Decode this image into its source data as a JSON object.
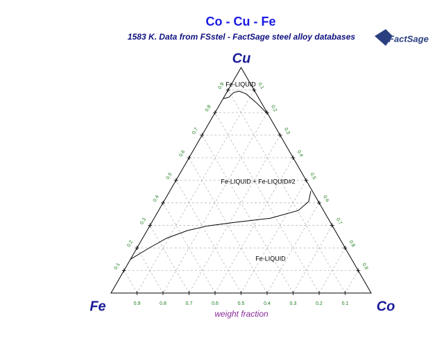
{
  "chart_data": {
    "type": "ternary",
    "title": "Co - Cu - Fe",
    "subtitle": "1583 K.  Data from FSstel - FactSage steel alloy databases",
    "logo": "FactSage",
    "vertices": {
      "top": "Cu",
      "left": "Fe",
      "right": "Co"
    },
    "xlabel": "weight fraction",
    "annotations": [
      "Fe-LIQUID",
      "Fe-LIQUID + Fe-LIQUID#2",
      "Fe-LIQUID"
    ],
    "cu_ticks": [
      0.1,
      0.2,
      0.3,
      0.4,
      0.5,
      0.6,
      0.7,
      0.8,
      0.9
    ],
    "co_ticks": [
      0.1,
      0.2,
      0.3,
      0.4,
      0.5,
      0.6,
      0.7,
      0.8,
      0.9
    ],
    "fe_ticks": [
      0.1,
      0.2,
      0.3,
      0.4,
      0.5,
      0.6,
      0.7,
      0.8,
      0.9
    ],
    "grid": true,
    "series": [
      {
        "color": "#000000",
        "cu": [
          0.15,
          0.2,
          0.243,
          0.277,
          0.298,
          0.314,
          0.332,
          0.366,
          0.406,
          0.452
        ],
        "co": [
          0,
          0.047,
          0.092,
          0.155,
          0.224,
          0.323,
          0.447,
          0.537,
          0.557,
          0.542
        ]
      },
      {
        "color": "#000000",
        "cu": [
          0.862,
          0.868,
          0.889,
          0.895,
          0.883,
          0.843,
          0.797
        ],
        "co": [
          0,
          0.019,
          0.027,
          0.045,
          0.078,
          0.138,
          0.201
        ]
      }
    ]
  }
}
